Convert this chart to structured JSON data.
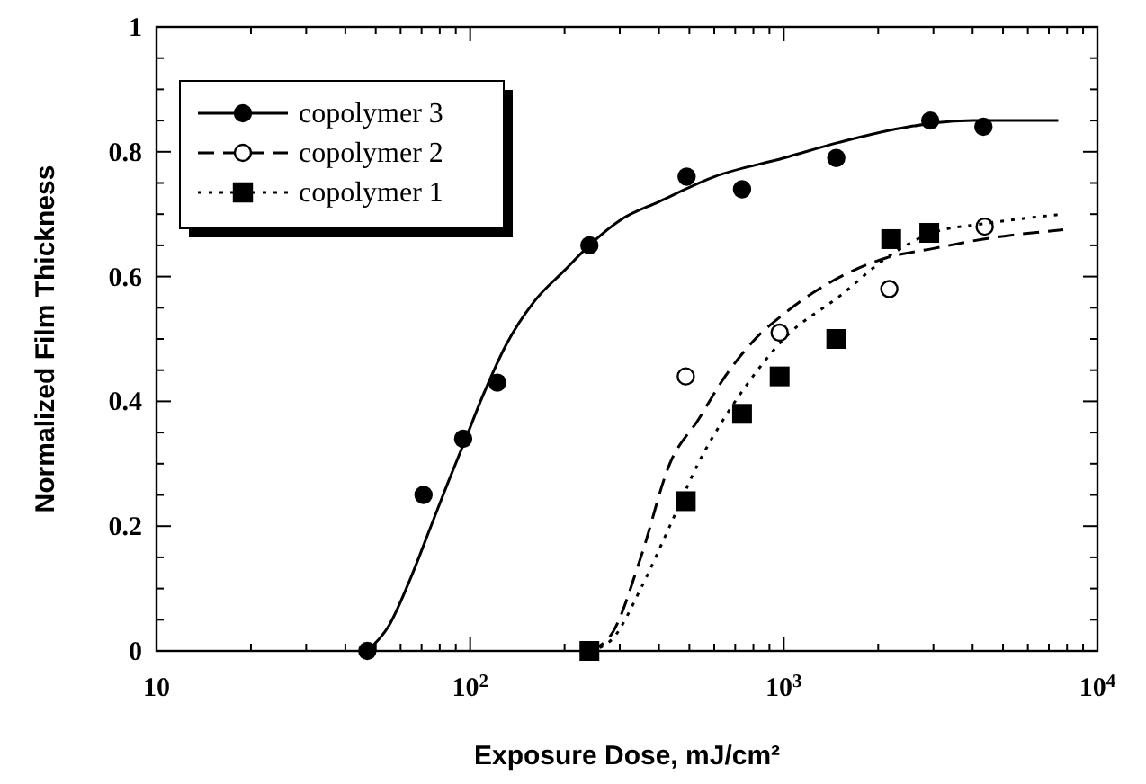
{
  "chart_data": {
    "type": "scatter",
    "xlabel": "Exposure Dose, mJ/cm²",
    "ylabel": "Normalized Film Thickness",
    "log": "x",
    "xlim": [
      10,
      10000
    ],
    "ylim": [
      0,
      1
    ],
    "xticks": [
      10,
      {
        "value": 100,
        "label": "10$^{2}$"
      },
      {
        "value": 1000,
        "label": "10$^{3}$"
      },
      {
        "value": 10000,
        "label": "10$^{4}$"
      }
    ],
    "yticks": [
      0,
      0.2,
      0.4,
      0.6,
      0.8,
      1
    ],
    "grid": false,
    "legend": "top left",
    "series": [
      {
        "name": "copolymer 3",
        "color": "#000000",
        "marker": "circle",
        "line_style": "solid",
        "x": [
          47,
          71,
          95,
          122,
          240,
          490,
          736,
          1470,
          2930,
          4330
        ],
        "values": [
          0,
          0.25,
          0.34,
          0.43,
          0.65,
          0.76,
          0.74,
          0.79,
          0.85,
          0.84
        ]
      },
      {
        "name": "copolymer 2",
        "color": "#ffffff",
        "marker": "circle",
        "line_style": "dashed",
        "x": [
          487,
          970,
          2170,
          4370
        ],
        "values": [
          0.44,
          0.51,
          0.58,
          0.68
        ]
      },
      {
        "name": "copolymer 1",
        "color": "#000000",
        "marker": "square",
        "line_style": "dotted",
        "x": [
          240,
          487,
          736,
          970,
          1470,
          2200,
          2910
        ],
        "values": [
          0,
          0.24,
          0.38,
          0.44,
          0.5,
          0.66,
          0.67
        ]
      },
      {
        "type": "line",
        "color": "#000000",
        "line_style": "solid",
        "x": [
          47,
          55,
          65,
          75,
          85,
          95,
          110,
          130,
          160,
          200,
          240,
          300,
          400,
          600,
          1000,
          1500,
          2500,
          4000,
          7500
        ],
        "values": [
          0,
          0.04,
          0.12,
          0.2,
          0.27,
          0.33,
          0.41,
          0.49,
          0.56,
          0.61,
          0.65,
          0.69,
          0.72,
          0.76,
          0.79,
          0.815,
          0.84,
          0.85,
          0.85
        ]
      },
      {
        "type": "line",
        "color": "#000000",
        "line_style": "dashed",
        "x": [
          240,
          285,
          350,
          433,
          533,
          650,
          811,
          1000,
          1398,
          2125,
          3000,
          4325,
          7780
        ],
        "values": [
          0,
          0.03,
          0.15,
          0.3,
          0.37,
          0.44,
          0.5,
          0.54,
          0.59,
          0.63,
          0.645,
          0.66,
          0.675
        ]
      },
      {
        "type": "line",
        "color": "#000000",
        "line_style": "dotted",
        "x": [
          240,
          285,
          350,
          433,
          533,
          640,
          746,
          1000,
          1520,
          2125,
          2970,
          4400,
          7780
        ],
        "values": [
          0,
          0.02,
          0.1,
          0.2,
          0.3,
          0.37,
          0.42,
          0.5,
          0.57,
          0.63,
          0.67,
          0.685,
          0.7
        ]
      }
    ]
  }
}
